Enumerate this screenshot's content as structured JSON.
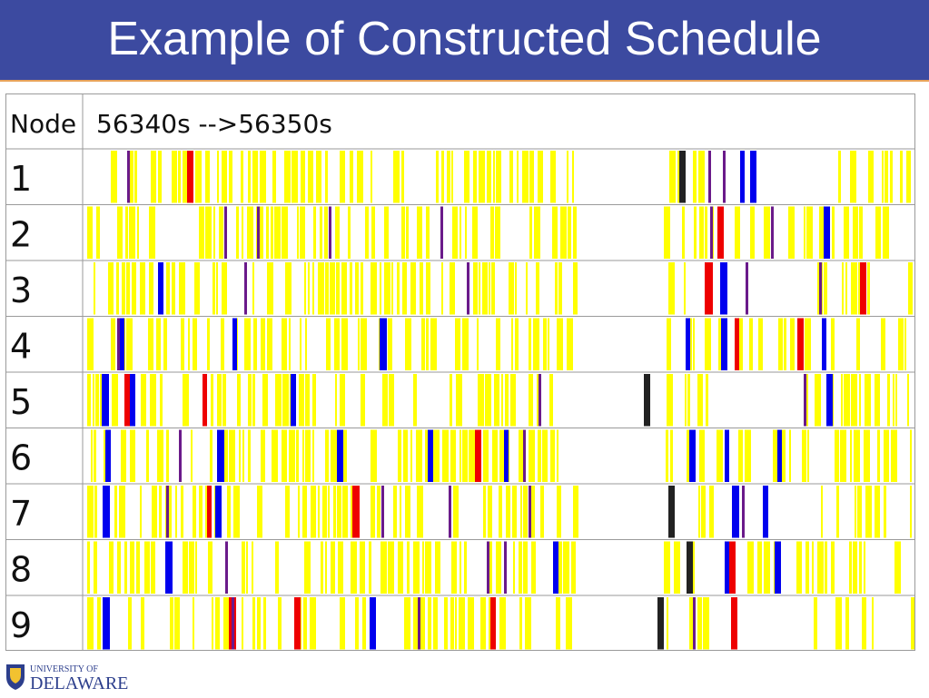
{
  "slide": {
    "title": "Example of Constructed Schedule"
  },
  "table": {
    "header_node": "Node",
    "header_time": "56340s -->56350s",
    "rows": [
      "1",
      "2",
      "3",
      "4",
      "5",
      "6",
      "7",
      "8",
      "9"
    ]
  },
  "legend_colors": {
    "yellow": "#ffff00",
    "blue": "#0000ee",
    "red": "#ee0000",
    "purple": "#6a1a8a",
    "black": "#222222"
  },
  "footer": {
    "logo_line1": "UNIVERSITY OF",
    "logo_line2": "DELAWARE"
  }
}
